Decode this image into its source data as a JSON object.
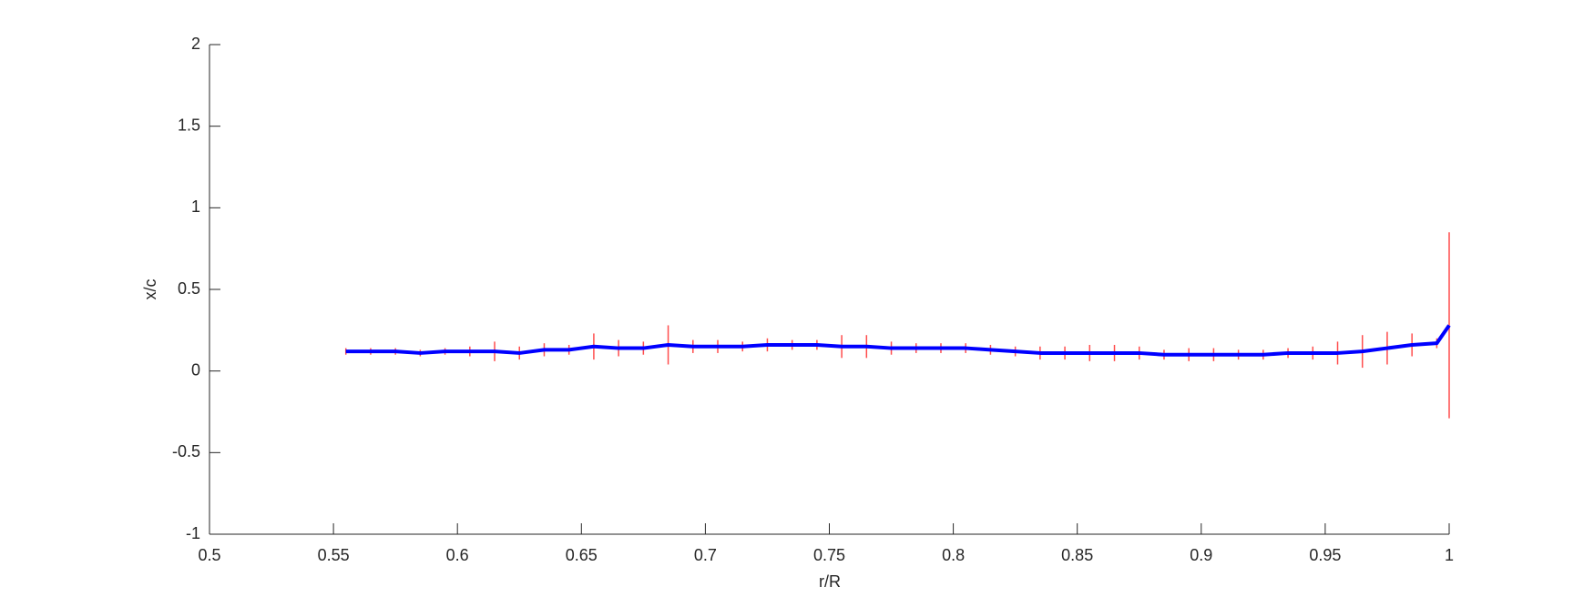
{
  "chart_data": {
    "type": "errorbar",
    "x_label": "r/R",
    "y_label": "x/c",
    "x": [
      0.555,
      0.565,
      0.575,
      0.585,
      0.595,
      0.605,
      0.615,
      0.625,
      0.635,
      0.645,
      0.655,
      0.665,
      0.675,
      0.685,
      0.695,
      0.705,
      0.715,
      0.725,
      0.735,
      0.745,
      0.755,
      0.765,
      0.775,
      0.785,
      0.795,
      0.805,
      0.815,
      0.825,
      0.835,
      0.845,
      0.855,
      0.865,
      0.875,
      0.885,
      0.895,
      0.905,
      0.915,
      0.925,
      0.935,
      0.945,
      0.955,
      0.965,
      0.975,
      0.985,
      0.995,
      1.0
    ],
    "series": [
      {
        "color": "#0000ff",
        "error_color": "#ff4d4d",
        "values": [
          0.12,
          0.12,
          0.12,
          0.11,
          0.12,
          0.12,
          0.12,
          0.11,
          0.13,
          0.13,
          0.15,
          0.14,
          0.14,
          0.16,
          0.15,
          0.15,
          0.15,
          0.16,
          0.16,
          0.16,
          0.15,
          0.15,
          0.14,
          0.14,
          0.14,
          0.14,
          0.13,
          0.12,
          0.11,
          0.11,
          0.11,
          0.11,
          0.11,
          0.1,
          0.1,
          0.1,
          0.1,
          0.1,
          0.11,
          0.11,
          0.11,
          0.12,
          0.14,
          0.16,
          0.17,
          0.28
        ],
        "errors": [
          0.02,
          0.02,
          0.02,
          0.02,
          0.02,
          0.03,
          0.06,
          0.04,
          0.04,
          0.03,
          0.08,
          0.05,
          0.04,
          0.12,
          0.04,
          0.04,
          0.03,
          0.04,
          0.03,
          0.03,
          0.07,
          0.07,
          0.04,
          0.03,
          0.03,
          0.03,
          0.03,
          0.03,
          0.04,
          0.04,
          0.05,
          0.05,
          0.04,
          0.03,
          0.04,
          0.04,
          0.03,
          0.03,
          0.03,
          0.04,
          0.07,
          0.1,
          0.1,
          0.07,
          0.03,
          0.57
        ]
      }
    ],
    "xlim": [
      0.5,
      1
    ],
    "xticks": [
      0.5,
      0.55,
      0.6,
      0.65,
      0.7,
      0.75,
      0.8,
      0.85,
      0.9,
      0.95,
      1
    ],
    "ylim": [
      -1,
      2
    ],
    "yticks": [
      -1,
      -0.5,
      0,
      0.5,
      1,
      1.5,
      2
    ]
  }
}
